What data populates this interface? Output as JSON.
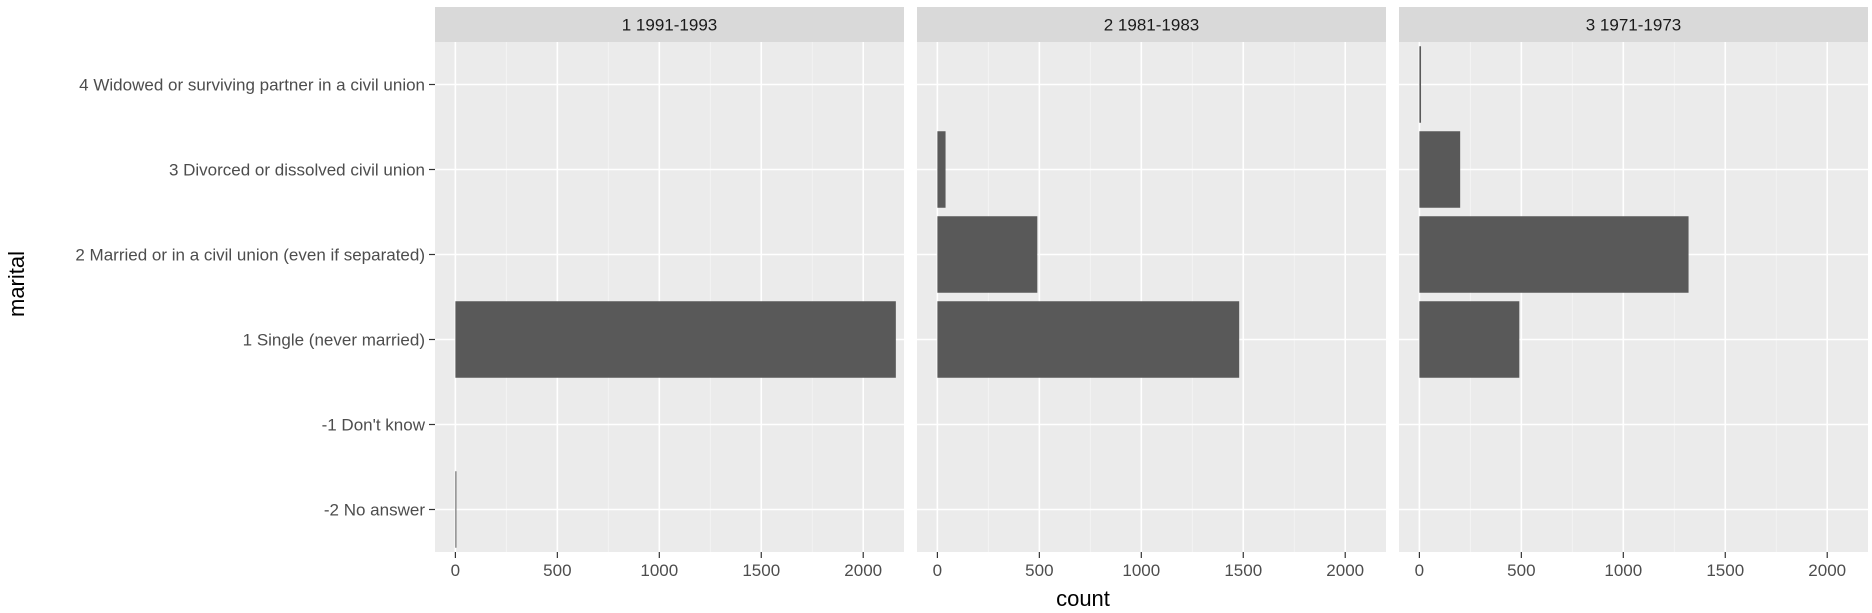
{
  "chart_data": {
    "type": "bar",
    "orientation": "horizontal",
    "facet_by": "cohort",
    "xlabel": "count",
    "ylabel": "marital",
    "xlim": [
      -100,
      2200
    ],
    "x_ticks": [
      0,
      500,
      1000,
      1500,
      2000
    ],
    "x_tick_labels": [
      "0",
      "500",
      "1000",
      "1500",
      "2000"
    ],
    "categories": [
      "-2 No answer",
      "-1 Don't know",
      "1 Single (never married)",
      "2 Married or in a civil union (even if separated)",
      "3 Divorced or dissolved civil union",
      "4 Widowed or surviving partner in a civil union"
    ],
    "grid": true,
    "legend": "none",
    "facets": [
      {
        "label": "1 1991-1993",
        "values": [
          3,
          0,
          2160,
          0,
          0,
          0
        ]
      },
      {
        "label": "2 1981-1983",
        "values": [
          0,
          0,
          1480,
          490,
          40,
          0
        ]
      },
      {
        "label": "3 1971-1973",
        "values": [
          0,
          0,
          490,
          1320,
          200,
          8
        ]
      }
    ]
  }
}
